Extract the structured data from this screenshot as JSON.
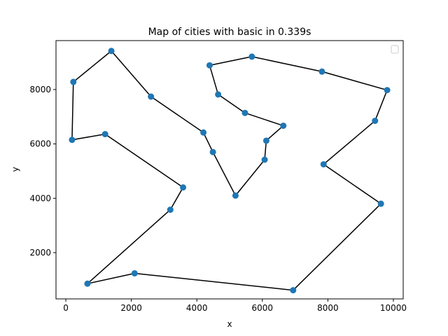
{
  "chart_data": {
    "type": "scatter",
    "title": "Map of cities with basic in 0.339s",
    "xlabel": "x",
    "ylabel": "y",
    "xlim": [
      -300,
      10300
    ],
    "ylim": [
      300,
      9800
    ],
    "xticks": [
      0,
      2000,
      4000,
      6000,
      8000,
      10000
    ],
    "yticks": [
      2000,
      4000,
      6000,
      8000
    ],
    "grid": false,
    "legend": {
      "placement": "top-right",
      "entries": []
    },
    "colors": {
      "points": "#1f77b4",
      "route": "#000000"
    },
    "series": [
      {
        "tour_order": true,
        "points": [
          {
            "x": 1390,
            "y": 9420
          },
          {
            "x": 230,
            "y": 8280
          },
          {
            "x": 190,
            "y": 6150
          },
          {
            "x": 1200,
            "y": 6360
          },
          {
            "x": 3580,
            "y": 4400
          },
          {
            "x": 3190,
            "y": 3580
          },
          {
            "x": 660,
            "y": 860
          },
          {
            "x": 2100,
            "y": 1240
          },
          {
            "x": 6940,
            "y": 620
          },
          {
            "x": 9620,
            "y": 3800
          },
          {
            "x": 7870,
            "y": 5250
          },
          {
            "x": 9440,
            "y": 6850
          },
          {
            "x": 9810,
            "y": 7980
          },
          {
            "x": 7820,
            "y": 8660
          },
          {
            "x": 5680,
            "y": 9210
          },
          {
            "x": 4390,
            "y": 8890
          },
          {
            "x": 4650,
            "y": 7820
          },
          {
            "x": 5470,
            "y": 7140
          },
          {
            "x": 6640,
            "y": 6670
          },
          {
            "x": 6120,
            "y": 6120
          },
          {
            "x": 6070,
            "y": 5420
          },
          {
            "x": 5180,
            "y": 4100
          },
          {
            "x": 4490,
            "y": 5700
          },
          {
            "x": 4200,
            "y": 6420
          },
          {
            "x": 2600,
            "y": 7740
          }
        ]
      }
    ]
  }
}
